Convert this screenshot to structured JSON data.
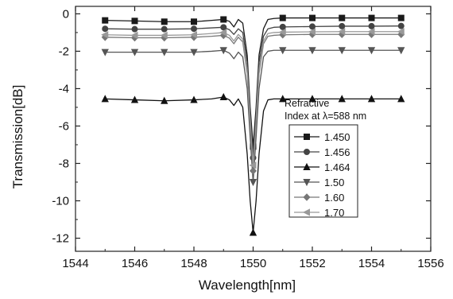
{
  "chart_data": {
    "type": "line",
    "xlabel": "Wavelength[nm]",
    "ylabel": "Transmission[dB]",
    "xlim": [
      1544,
      1556
    ],
    "ylim": [
      -12.7,
      0.4
    ],
    "xticks": [
      1544,
      1546,
      1548,
      1550,
      1552,
      1554,
      1556
    ],
    "yticks": [
      0,
      -2,
      -4,
      -6,
      -8,
      -10,
      -12
    ],
    "legend": {
      "title_line1": "Refractive",
      "title_line2": "Index at  λ=588 nm",
      "placement": "right"
    },
    "series": [
      {
        "name": "1.450",
        "marker": "square",
        "color": "#1a1a1a",
        "x": [
          1545,
          1546,
          1547,
          1548,
          1548.6,
          1549.0,
          1549.2,
          1549.35,
          1549.5,
          1549.65,
          1549.8,
          1549.9,
          1550.0,
          1550.1,
          1550.2,
          1550.35,
          1550.5,
          1550.7,
          1551,
          1552,
          1553,
          1554,
          1555
        ],
        "y": [
          -0.35,
          -0.38,
          -0.42,
          -0.42,
          -0.35,
          -0.3,
          -0.4,
          -0.7,
          -0.3,
          -0.5,
          -2.2,
          -5.0,
          -7.1,
          -5.0,
          -2.2,
          -0.8,
          -0.3,
          -0.25,
          -0.22,
          -0.22,
          -0.22,
          -0.22,
          -0.22
        ]
      },
      {
        "name": "1.456",
        "marker": "circle",
        "color": "#444444",
        "x": [
          1545,
          1546,
          1547,
          1548,
          1548.6,
          1549.0,
          1549.2,
          1549.35,
          1549.5,
          1549.65,
          1549.8,
          1549.9,
          1550.0,
          1550.1,
          1550.2,
          1550.35,
          1550.5,
          1550.7,
          1551,
          1552,
          1553,
          1554,
          1555
        ],
        "y": [
          -0.8,
          -0.82,
          -0.82,
          -0.8,
          -0.75,
          -0.72,
          -0.85,
          -1.1,
          -0.8,
          -1.0,
          -2.6,
          -5.4,
          -7.7,
          -5.4,
          -2.6,
          -1.2,
          -0.8,
          -0.72,
          -0.7,
          -0.68,
          -0.66,
          -0.66,
          -0.65
        ]
      },
      {
        "name": "1.464",
        "marker": "triangle-up",
        "color": "#111111",
        "x": [
          1545,
          1546,
          1547,
          1548,
          1548.6,
          1549.0,
          1549.2,
          1549.35,
          1549.5,
          1549.65,
          1549.8,
          1549.9,
          1550.0,
          1550.1,
          1550.2,
          1550.35,
          1550.5,
          1550.7,
          1551,
          1552,
          1553,
          1554,
          1555
        ],
        "y": [
          -4.55,
          -4.6,
          -4.65,
          -4.6,
          -4.55,
          -4.45,
          -4.6,
          -4.9,
          -4.55,
          -5.0,
          -7.5,
          -10.0,
          -11.7,
          -10.0,
          -7.5,
          -5.2,
          -4.6,
          -4.55,
          -4.55,
          -4.55,
          -4.55,
          -4.55,
          -4.55
        ]
      },
      {
        "name": "1.50",
        "marker": "triangle-down",
        "color": "#555555",
        "x": [
          1545,
          1546,
          1547,
          1548,
          1548.6,
          1549.0,
          1549.2,
          1549.35,
          1549.5,
          1549.65,
          1549.8,
          1549.9,
          1550.0,
          1550.1,
          1550.2,
          1550.35,
          1550.5,
          1550.7,
          1551,
          1552,
          1553,
          1554,
          1555
        ],
        "y": [
          -2.05,
          -2.05,
          -2.05,
          -2.05,
          -2.0,
          -1.95,
          -2.1,
          -2.4,
          -2.05,
          -2.3,
          -4.0,
          -6.6,
          -9.0,
          -6.6,
          -4.0,
          -2.3,
          -2.0,
          -1.95,
          -1.95,
          -1.95,
          -1.95,
          -1.95,
          -1.95
        ]
      },
      {
        "name": "1.60",
        "marker": "diamond",
        "color": "#777777",
        "x": [
          1545,
          1546,
          1547,
          1548,
          1548.6,
          1549.0,
          1549.2,
          1549.35,
          1549.5,
          1549.65,
          1549.8,
          1549.9,
          1550.0,
          1550.1,
          1550.2,
          1550.35,
          1550.5,
          1550.7,
          1551,
          1552,
          1553,
          1554,
          1555
        ],
        "y": [
          -1.25,
          -1.28,
          -1.28,
          -1.25,
          -1.2,
          -1.15,
          -1.3,
          -1.6,
          -1.25,
          -1.5,
          -3.2,
          -5.9,
          -8.4,
          -5.9,
          -3.2,
          -1.6,
          -1.2,
          -1.15,
          -1.12,
          -1.1,
          -1.1,
          -1.1,
          -1.1
        ]
      },
      {
        "name": "1.70",
        "marker": "triangle-left",
        "color": "#999999",
        "x": [
          1545,
          1546,
          1547,
          1548,
          1548.6,
          1549.0,
          1549.2,
          1549.35,
          1549.5,
          1549.65,
          1549.8,
          1549.9,
          1550.0,
          1550.1,
          1550.2,
          1550.35,
          1550.5,
          1550.7,
          1551,
          1552,
          1553,
          1554,
          1555
        ],
        "y": [
          -1.12,
          -1.15,
          -1.15,
          -1.12,
          -1.05,
          -1.0,
          -1.15,
          -1.45,
          -1.1,
          -1.35,
          -3.0,
          -5.7,
          -8.1,
          -5.7,
          -3.0,
          -1.45,
          -1.05,
          -1.0,
          -0.98,
          -0.96,
          -0.95,
          -0.95,
          -0.95
        ]
      }
    ]
  }
}
